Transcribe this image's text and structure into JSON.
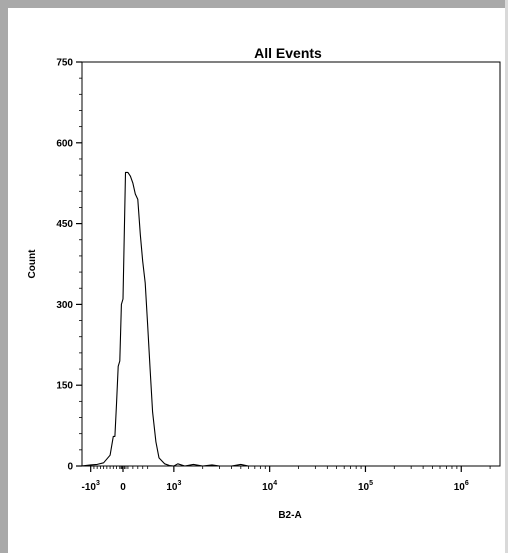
{
  "chart_data": {
    "type": "line",
    "title": "All Events",
    "xlabel": "B2-A",
    "ylabel": "Count",
    "ylim": [
      0,
      750
    ],
    "y_ticks": [
      "0",
      "150",
      "300",
      "450",
      "600",
      "750"
    ],
    "x_ticks": [
      {
        "base": "-10",
        "exp": "3"
      },
      {
        "base": "0",
        "exp": ""
      },
      {
        "base": "10",
        "exp": "3"
      },
      {
        "base": "10",
        "exp": "4"
      },
      {
        "base": "10",
        "exp": "5"
      },
      {
        "base": "10",
        "exp": "6"
      }
    ],
    "x_scale": "biexponential",
    "grid": false,
    "series": [
      {
        "x": [
          -1300,
          -1000,
          -800,
          -600,
          -400,
          -300,
          -250,
          -200,
          -150,
          -100,
          -50,
          0,
          50,
          100,
          150,
          200,
          250,
          300,
          350,
          400,
          450,
          500,
          550,
          600,
          650,
          700,
          800,
          900,
          1000,
          1100,
          1300,
          1600,
          2000,
          2500,
          3000,
          4000,
          5000,
          6000,
          8000,
          10000,
          100000,
          1000000,
          2000000
        ],
        "y": [
          0,
          2,
          3,
          6,
          20,
          55,
          55,
          115,
          185,
          195,
          300,
          310,
          545,
          545,
          538,
          525,
          505,
          495,
          430,
          380,
          340,
          260,
          180,
          100,
          45,
          15,
          4,
          1,
          0,
          4,
          0,
          3,
          0,
          2,
          0,
          0,
          3,
          0,
          0,
          0,
          0,
          0,
          0
        ]
      }
    ]
  }
}
